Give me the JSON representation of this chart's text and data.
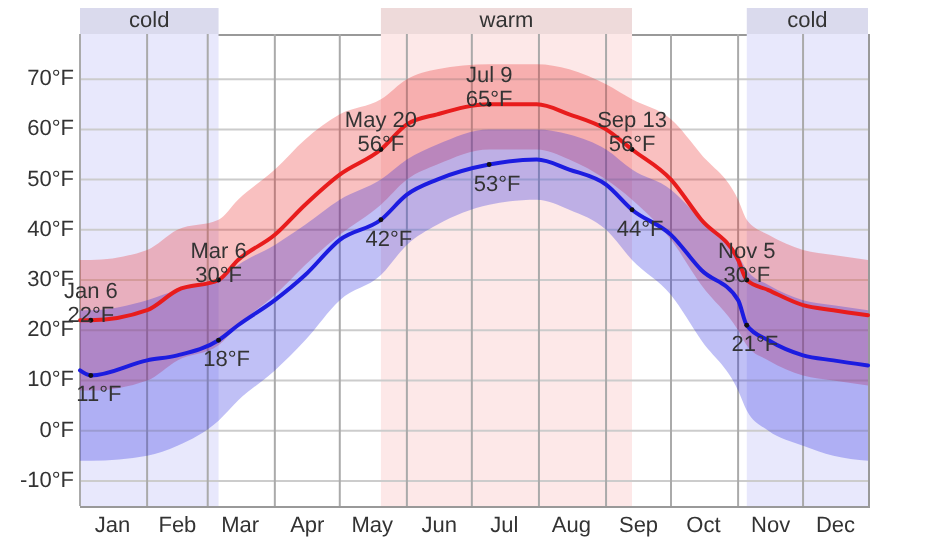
{
  "chart_data": {
    "type": "line",
    "x": [
      "--01-01",
      "--01-06",
      "--02-01",
      "--02-15",
      "--03-06",
      "--03-15",
      "--04-01",
      "--04-15",
      "--05-01",
      "--05-20",
      "--06-01",
      "--06-15",
      "--07-09",
      "--07-31",
      "--08-15",
      "--09-01",
      "--09-13",
      "--10-01",
      "--10-15",
      "--11-01",
      "--11-05",
      "--11-15",
      "--12-01",
      "--12-15",
      "--12-31"
    ],
    "series": [
      {
        "color": "#e81c1c",
        "values": [
          22,
          22,
          24,
          28,
          30,
          34,
          39,
          45,
          51,
          56,
          61,
          63,
          65,
          65,
          63,
          60,
          56,
          50,
          42,
          34,
          30,
          28,
          25,
          24,
          23
        ],
        "lower": [
          8,
          8,
          10,
          14,
          17,
          21,
          27,
          33,
          39,
          45,
          50,
          53,
          56,
          56,
          54,
          50,
          46,
          38,
          29,
          20,
          17,
          14,
          11,
          10,
          9
        ],
        "upper": [
          34,
          34,
          36,
          40,
          42,
          46,
          52,
          58,
          63,
          66,
          70,
          72,
          73,
          73,
          72,
          69,
          66,
          62,
          55,
          46,
          42,
          39,
          36,
          35,
          34
        ]
      },
      {
        "color": "#1c1ce0",
        "values": [
          12,
          11,
          14,
          15,
          18,
          21,
          26,
          31,
          38,
          42,
          47,
          50,
          53,
          54,
          52,
          49,
          44,
          39,
          32,
          26,
          21,
          18,
          15,
          14,
          13
        ],
        "lower": [
          -6,
          -6,
          -5,
          -3,
          2,
          6,
          12,
          18,
          26,
          31,
          37,
          41,
          45,
          46,
          44,
          40,
          34,
          27,
          18,
          8,
          4,
          0,
          -3,
          -5,
          -6
        ],
        "upper": [
          24,
          24,
          26,
          28,
          30,
          33,
          37,
          41,
          46,
          50,
          54,
          57,
          60,
          60,
          59,
          56,
          52,
          48,
          42,
          35,
          32,
          29,
          26,
          25,
          24
        ]
      }
    ],
    "xlim": [
      "--01-01",
      "--12-31"
    ],
    "xticks": [
      {
        "value": "--01-01",
        "label": null
      },
      {
        "value": "--01-16",
        "label": "Jan"
      },
      {
        "value": "--02-01",
        "label": null
      },
      {
        "value": "--02-15",
        "label": "Feb"
      },
      {
        "value": "--03-01",
        "label": null
      },
      {
        "value": "--03-16",
        "label": "Mar"
      },
      {
        "value": "--04-01",
        "label": null
      },
      {
        "value": "--04-16",
        "label": "Apr"
      },
      {
        "value": "--05-01",
        "label": null
      },
      {
        "value": "--05-16",
        "label": "May"
      },
      {
        "value": "--06-01",
        "label": null
      },
      {
        "value": "--06-16",
        "label": "Jun"
      },
      {
        "value": "--07-01",
        "label": null
      },
      {
        "value": "--07-16",
        "label": "Jul"
      },
      {
        "value": "--08-01",
        "label": null
      },
      {
        "value": "--08-16",
        "label": "Aug"
      },
      {
        "value": "--09-01",
        "label": null
      },
      {
        "value": "--09-16",
        "label": "Sep"
      },
      {
        "value": "--10-01",
        "label": null
      },
      {
        "value": "--10-16",
        "label": "Oct"
      },
      {
        "value": "--11-01",
        "label": null
      },
      {
        "value": "--11-16",
        "label": "Nov"
      },
      {
        "value": "--12-01",
        "label": null
      },
      {
        "value": "--12-16",
        "label": "Dec"
      }
    ],
    "ylim": [
      -15,
      79
    ],
    "yticks": [
      {
        "value": -10,
        "label": "-10°F"
      },
      {
        "value": 0,
        "label": "0°F"
      },
      {
        "value": 10,
        "label": "10°F"
      },
      {
        "value": 20,
        "label": "20°F"
      },
      {
        "value": 30,
        "label": "30°F"
      },
      {
        "value": 40,
        "label": "40°F"
      },
      {
        "value": 50,
        "label": "50°F"
      },
      {
        "value": 60,
        "label": "60°F"
      },
      {
        "value": 70,
        "label": "70°F"
      }
    ],
    "grid": true,
    "bands": [
      {
        "axis": "x",
        "from": "--01-01",
        "to": "--03-06",
        "label": "cold",
        "color": "#e8e8fc"
      },
      {
        "axis": "x",
        "from": "--05-20",
        "to": "--09-13",
        "label": "warm",
        "color": "#fde8e8"
      },
      {
        "axis": "x",
        "from": "--11-05",
        "to": "--12-31",
        "label": "cold",
        "color": "#e8e8fc"
      }
    ],
    "annotations": [
      {
        "text": "Jan 6\n22°F",
        "x": "--01-06",
        "y": 22
      },
      {
        "text": "Mar 6\n30°F",
        "x": "--03-06",
        "y": 30
      },
      {
        "text": "May 20\n56°F",
        "x": "--05-20",
        "y": 56
      },
      {
        "text": "Jul 9\n65°F",
        "x": "--07-09",
        "y": 65
      },
      {
        "text": "Sep 13\n56°F",
        "x": "--09-13",
        "y": 56
      },
      {
        "text": "Nov 5\n30°F",
        "x": "--11-05",
        "y": 30
      },
      {
        "text": "11°F",
        "x": "--01-06",
        "y": 11
      },
      {
        "text": "18°F",
        "x": "--03-06",
        "y": 18
      },
      {
        "text": "42°F",
        "x": "--05-20",
        "y": 42
      },
      {
        "text": "53°F",
        "x": "--07-09",
        "y": 53
      },
      {
        "text": "44°F",
        "x": "--09-13",
        "y": 44
      },
      {
        "text": "21°F",
        "x": "--11-05",
        "y": 21
      }
    ]
  }
}
